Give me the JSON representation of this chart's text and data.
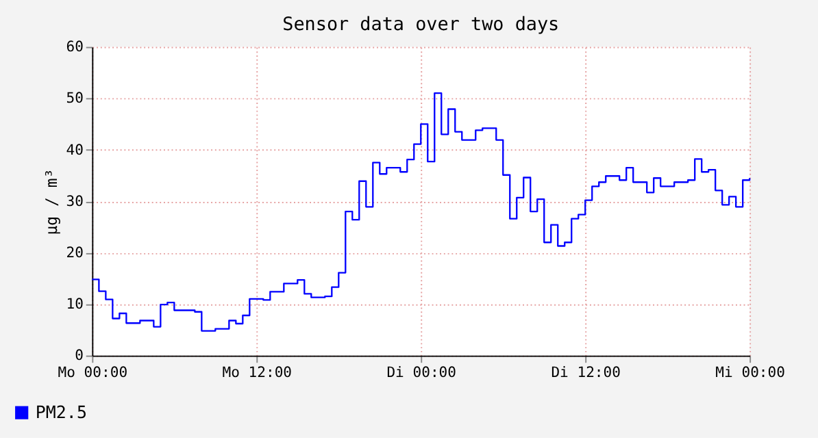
{
  "chart_data": {
    "type": "step",
    "title": "Sensor data over two days",
    "ylabel": "µg / m³",
    "categories": [
      "Mo 00:00",
      null,
      null,
      null,
      null,
      null,
      null,
      null,
      null,
      null,
      null,
      null,
      null,
      null,
      null,
      null,
      null,
      null,
      null,
      null,
      null,
      null,
      null,
      null,
      "Mo 12:00",
      null,
      null,
      null,
      null,
      null,
      null,
      null,
      null,
      null,
      null,
      null,
      null,
      null,
      null,
      null,
      null,
      null,
      null,
      null,
      null,
      null,
      null,
      null,
      "Di 00:00",
      null,
      null,
      null,
      null,
      null,
      null,
      null,
      null,
      null,
      null,
      null,
      null,
      null,
      null,
      null,
      null,
      null,
      null,
      null,
      null,
      null,
      null,
      null,
      "Di 12:00",
      null,
      null,
      null,
      null,
      null,
      null,
      null,
      null,
      null,
      null,
      null,
      null,
      null,
      null,
      null,
      null,
      null,
      null,
      null,
      null,
      null,
      null,
      null,
      "Mi 00:00"
    ],
    "series": [
      {
        "name": "PM2.5",
        "color": "#0000ff",
        "values": [
          14.8,
          12.5,
          10.9,
          7.2,
          8.2,
          6.3,
          6.3,
          6.8,
          6.8,
          5.6,
          9.9,
          10.3,
          8.8,
          8.8,
          8.8,
          8.5,
          4.8,
          4.8,
          5.2,
          5.2,
          6.8,
          6.2,
          7.8,
          11,
          11,
          10.8,
          12.4,
          12.4,
          14,
          14,
          14.7,
          12,
          11.3,
          11.3,
          11.5,
          13.3,
          16.1,
          28,
          26.4,
          33.9,
          28.9,
          37.5,
          35.3,
          36.5,
          36.5,
          35.7,
          38.1,
          41.1,
          45,
          37.7,
          51,
          43,
          47.9,
          43.5,
          41.9,
          41.9,
          43.8,
          44.2,
          44.2,
          41.9,
          35.1,
          26.6,
          30.7,
          34.6,
          28,
          30.4,
          22,
          25.4,
          21.3,
          22,
          26.6,
          27.4,
          30.2,
          32.9,
          33.7,
          34.9,
          34.9,
          34.1,
          36.5,
          33.7,
          33.7,
          31.7,
          34.5,
          32.9,
          32.9,
          33.7,
          33.7,
          34.1,
          38.2,
          35.7,
          36.1,
          32.1,
          29.3,
          30.9,
          28.9,
          34.1,
          34.5
        ]
      }
    ],
    "ylim": [
      0,
      60
    ],
    "yticks": [
      0,
      10,
      20,
      30,
      40,
      50,
      60
    ],
    "grid": true,
    "legend": "bottom left"
  }
}
